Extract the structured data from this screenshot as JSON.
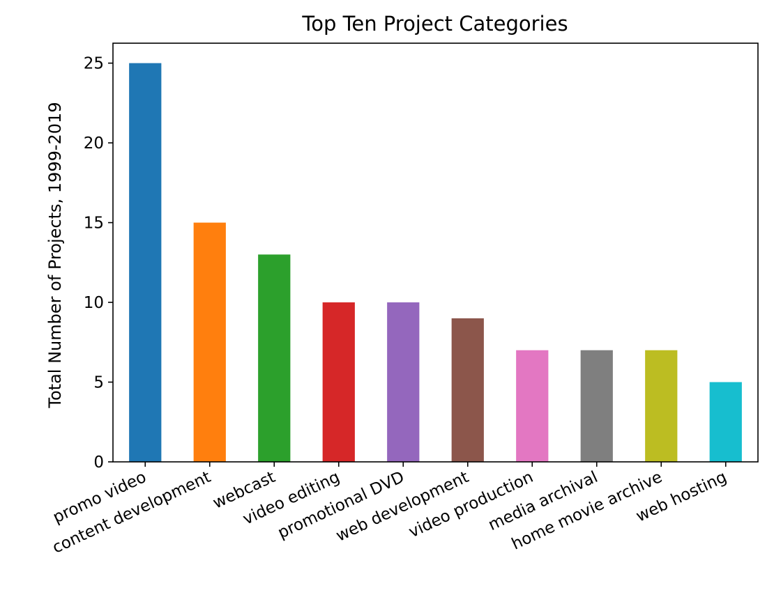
{
  "chart_data": {
    "type": "bar",
    "title": "Top Ten Project Categories",
    "xlabel": "",
    "ylabel": "Total Number of Projects, 1999-2019",
    "categories": [
      "promo video",
      "content development",
      "webcast",
      "video editing",
      "promotional DVD",
      "web development",
      "video production",
      "media archival",
      "home movie archive",
      "web hosting"
    ],
    "values": [
      25,
      15,
      13,
      10,
      10,
      9,
      7,
      7,
      7,
      5
    ],
    "colors": [
      "#1f77b4",
      "#ff7f0e",
      "#2ca02c",
      "#d62728",
      "#9467bd",
      "#8c564b",
      "#e377c2",
      "#7f7f7f",
      "#bcbd22",
      "#17becf"
    ],
    "ylim": [
      0,
      26.25
    ],
    "yticks": [
      0,
      5,
      10,
      15,
      20,
      25
    ],
    "grid": false,
    "legend": false,
    "x_tick_rotation": "rotated, right-aligned"
  }
}
